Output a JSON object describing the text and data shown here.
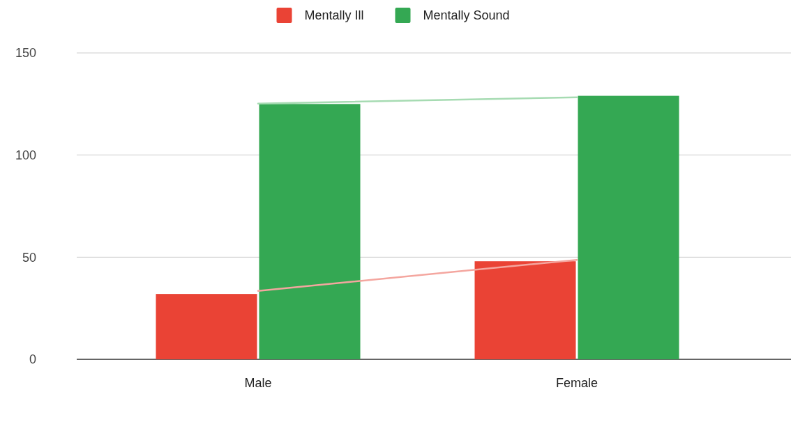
{
  "chart_data": {
    "type": "bar",
    "categories": [
      "Male",
      "Female"
    ],
    "series": [
      {
        "name": "Mentally Ill",
        "color": "#ea4335",
        "values": [
          32,
          48
        ]
      },
      {
        "name": "Mentally Sound",
        "color": "#34a853",
        "values": [
          125,
          129
        ]
      },
      {
        "type": "line",
        "color": "#f4a69f",
        "x": [
          "Male",
          "Female"
        ],
        "values": [
          33.5,
          48.7
        ]
      },
      {
        "type": "line",
        "color": "#a6dbb2",
        "x": [
          "Male",
          "Female"
        ],
        "values": [
          125.2,
          128.3
        ]
      }
    ],
    "ylim": [
      0,
      150
    ],
    "yticks": [
      0,
      50,
      100,
      150
    ],
    "grid": "y",
    "legend": "top"
  }
}
